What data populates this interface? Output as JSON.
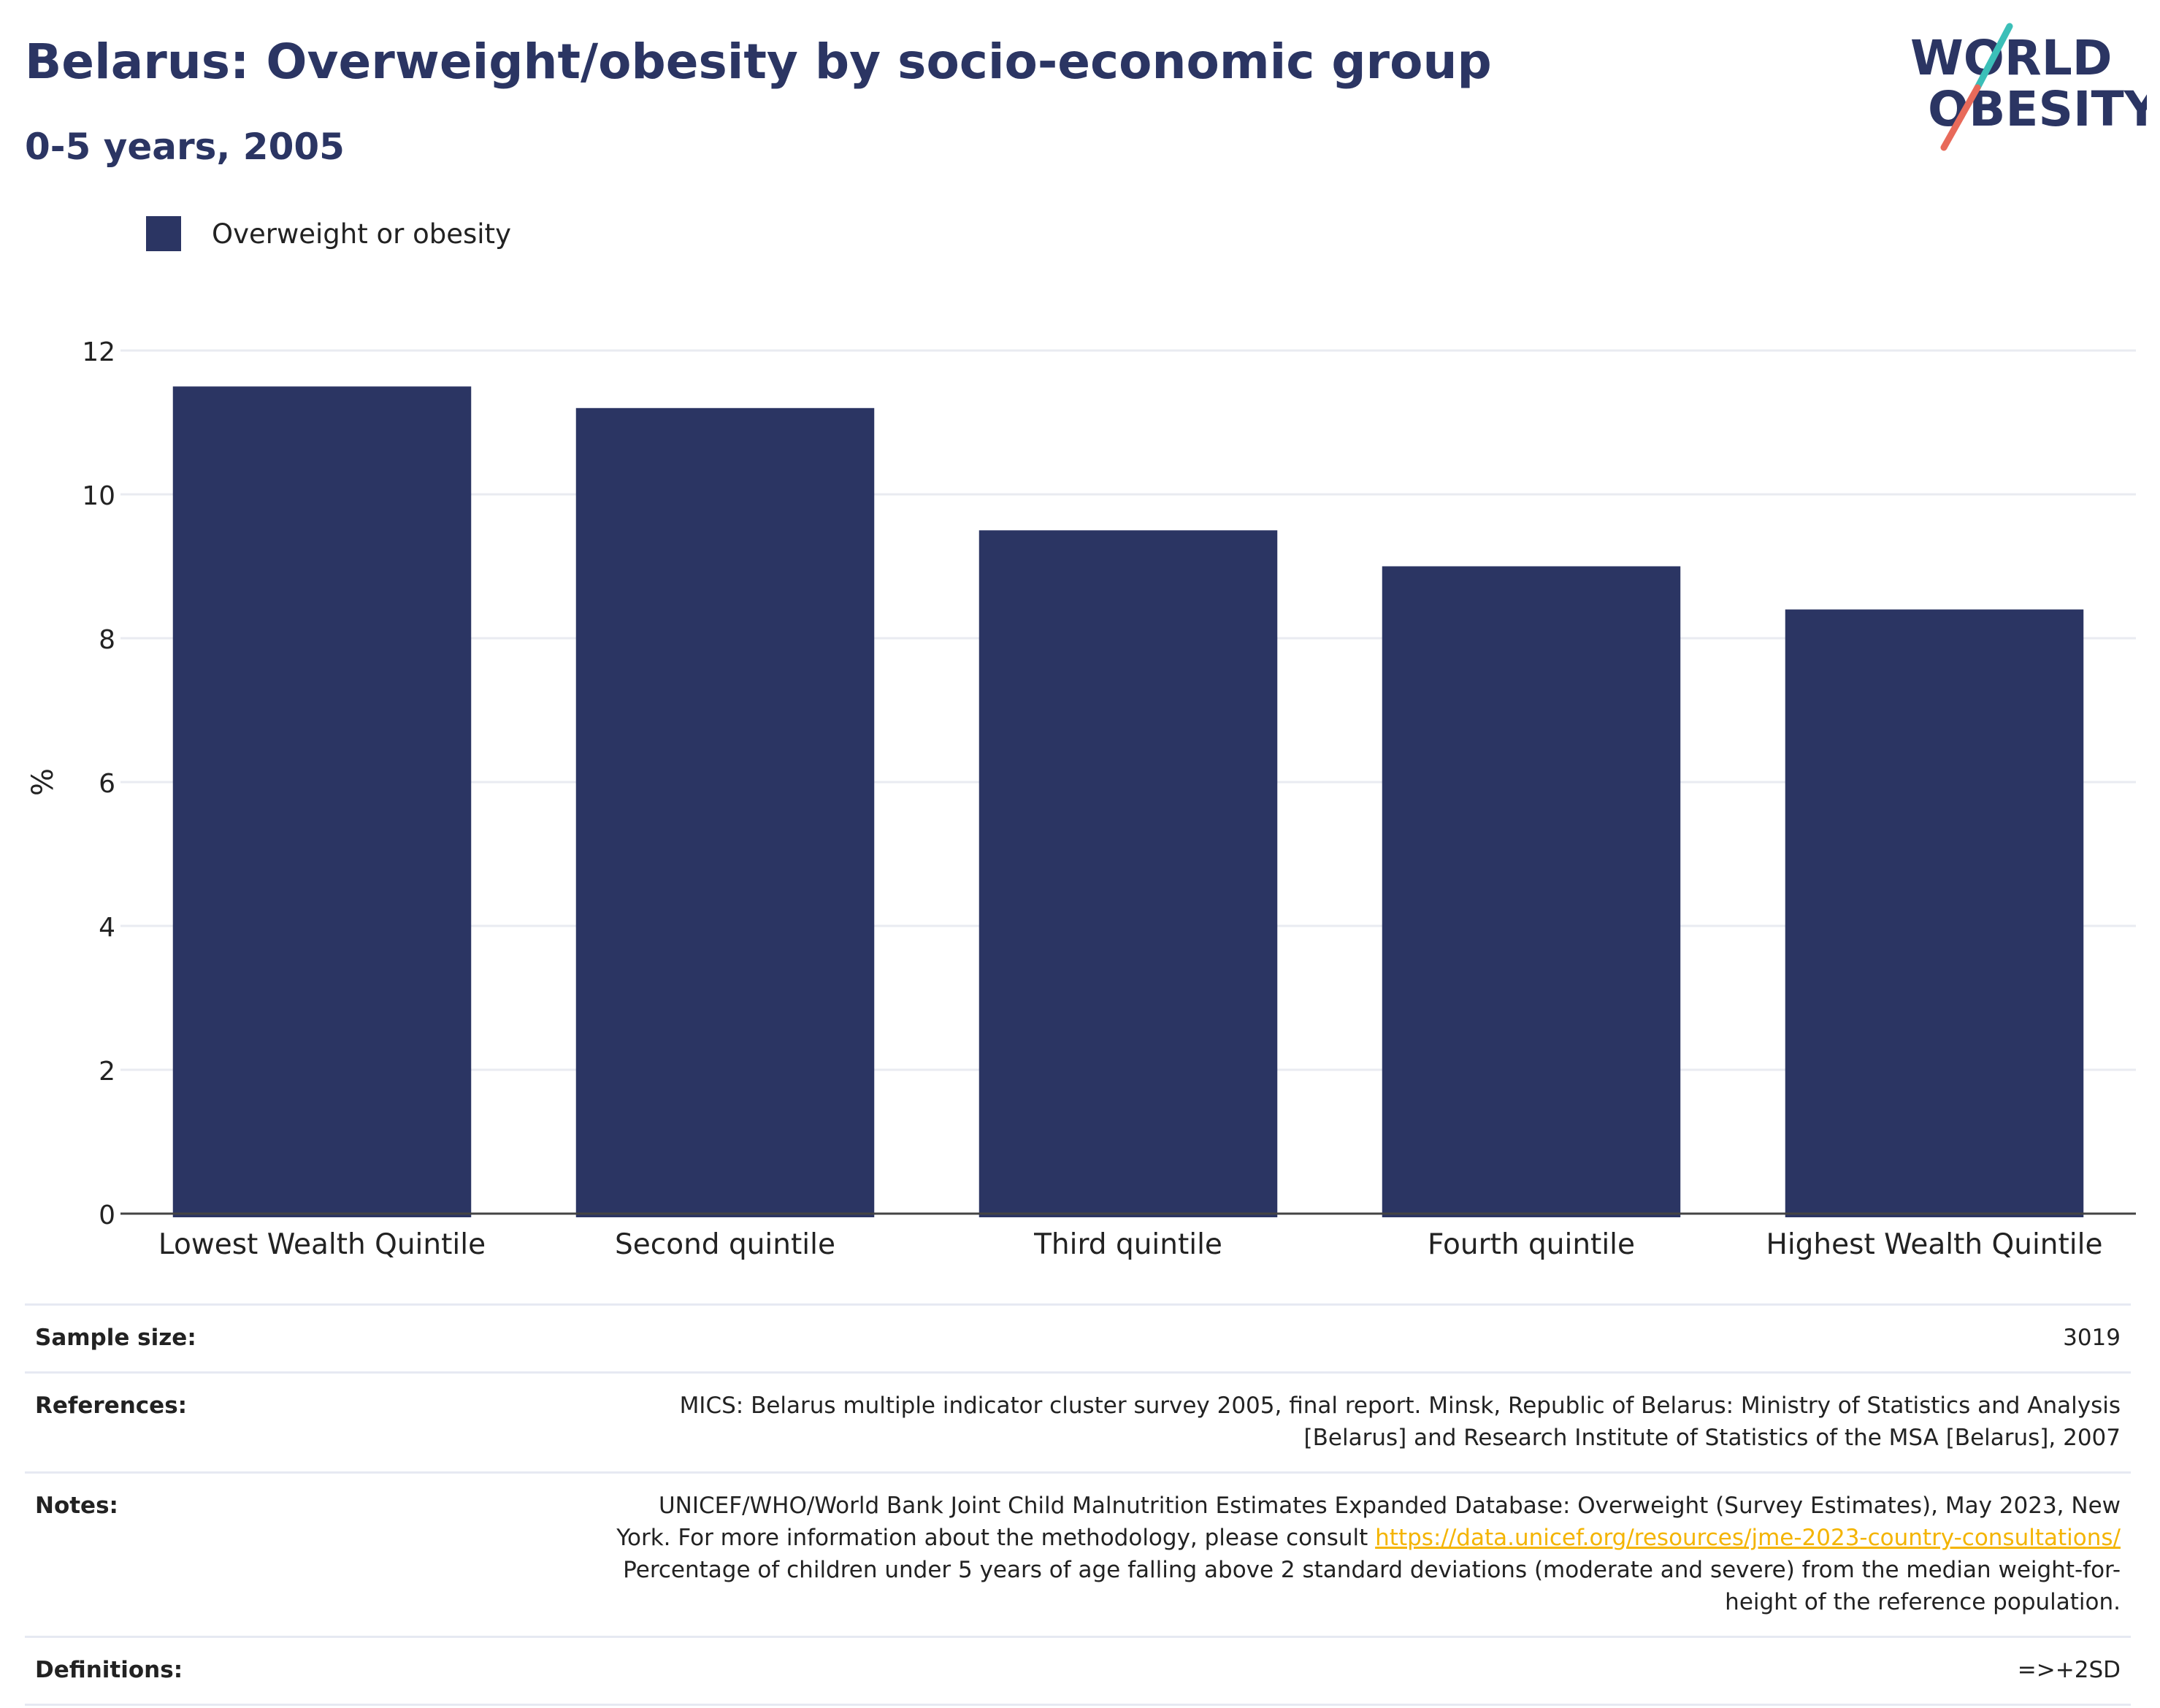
{
  "header": {
    "title": "Belarus: Overweight/obesity by socio-economic group",
    "subtitle": "0-5 years, 2005"
  },
  "logo": {
    "line1": "WORLD",
    "line2": "OBESITY"
  },
  "colors": {
    "bar": "#2b3563",
    "logo_teal": "#3bbfb8",
    "logo_coral": "#e86a5a",
    "link": "#f4b400"
  },
  "legend": {
    "label": "Overweight or obesity"
  },
  "chart_data": {
    "type": "bar",
    "categories": [
      "Lowest Wealth Quintile",
      "Second quintile",
      "Third quintile",
      "Fourth quintile",
      "Highest Wealth Quintile"
    ],
    "series": [
      {
        "name": "Overweight or obesity",
        "values": [
          11.5,
          11.2,
          9.5,
          9.0,
          8.4
        ]
      }
    ],
    "ylabel": "%",
    "ylim": [
      0,
      12
    ],
    "yticks": [
      0,
      2,
      4,
      6,
      8,
      10,
      12
    ],
    "grid": true,
    "legend_position": "top-left"
  },
  "footer": {
    "sample_size": {
      "label": "Sample size:",
      "value": "3019"
    },
    "references": {
      "label": "References:",
      "line1": "MICS: Belarus multiple indicator cluster survey 2005, final report. Minsk, Republic of Belarus: Ministry of Statistics and Analysis",
      "line2": "[Belarus] and Research Institute of Statistics of the MSA [Belarus], 2007"
    },
    "notes": {
      "label": "Notes:",
      "line1": "UNICEF/WHO/World Bank Joint Child Malnutrition Estimates Expanded Database: Overweight (Survey Estimates), May 2023, New",
      "line2_prefix": "York. For more information about the methodology, please consult ",
      "link": "https://data.unicef.org/resources/jme-2023-country-consultations/",
      "line3": "Percentage of children under 5 years of age falling above 2 standard deviations (moderate and severe) from the median weight-for-",
      "line4": "height of the reference population."
    },
    "definitions": {
      "label": "Definitions:",
      "value": "=>+2SD"
    }
  }
}
